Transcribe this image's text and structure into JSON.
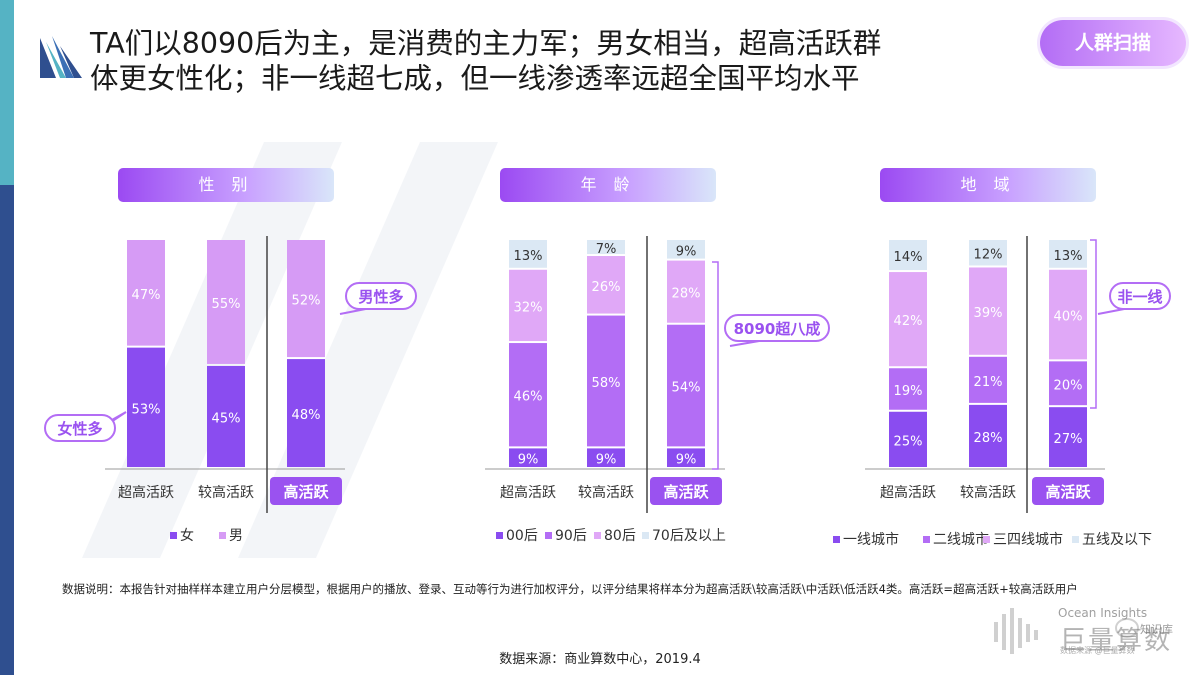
{
  "header": {
    "headline_line1": "TA们以8090后为主，是消费的主力军；男女相当，超高活跃群",
    "headline_line2": "体更女性化；非一线超七成，但一线渗透率远超全国平均水平",
    "badge": "人群扫描"
  },
  "footer": {
    "note": "数据说明：本报告针对抽样样本建立用户分层模型，根据用户的播放、登录、互动等行为进行加权评分，以评分结果将样本分为超高活跃\\较高活跃\\中活跃\\低活跃4类。高活跃=超高活跃+较高活跃用户",
    "source": "数据来源：商业算数中心，2019.4",
    "brand_line1": "Ocean Insights",
    "brand_line2": "巨量算数",
    "brand_line3": "数据来源 @巨量算数",
    "wechat_label": "知识库"
  },
  "chart_data": [
    {
      "type": "bar",
      "stacked": true,
      "title": "性 别",
      "categories": [
        "超高活跃",
        "较高活跃",
        "高活跃"
      ],
      "series": [
        {
          "name": "女",
          "values": [
            53,
            45,
            48
          ],
          "color": "#8a4cf0"
        },
        {
          "name": "男",
          "values": [
            47,
            55,
            52
          ],
          "color": "#d69bf5"
        }
      ],
      "ylim": [
        0,
        100
      ],
      "legend": "bottom",
      "callouts": [
        {
          "text": "女性多",
          "category": "超高活跃"
        },
        {
          "text": "男性多",
          "category": "高活跃"
        }
      ]
    },
    {
      "type": "bar",
      "stacked": true,
      "title": "年 龄",
      "categories": [
        "超高活跃",
        "较高活跃",
        "高活跃"
      ],
      "series": [
        {
          "name": "00后",
          "values": [
            9,
            9,
            9
          ],
          "color": "#8a4cf0"
        },
        {
          "name": "90后",
          "values": [
            46,
            58,
            54
          ],
          "color": "#b36df5"
        },
        {
          "name": "80后",
          "values": [
            32,
            26,
            28
          ],
          "color": "#e0a8f7"
        },
        {
          "name": "70后及以上",
          "values": [
            13,
            7,
            9
          ],
          "color": "#dbe8f4"
        }
      ],
      "ylim": [
        0,
        100
      ],
      "legend": "bottom",
      "callouts": [
        {
          "text": "8090超八成",
          "category": "高活跃"
        }
      ]
    },
    {
      "type": "bar",
      "stacked": true,
      "title": "地 域",
      "categories": [
        "超高活跃",
        "较高活跃",
        "高活跃"
      ],
      "series": [
        {
          "name": "一线城市",
          "values": [
            25,
            28,
            27
          ],
          "color": "#8a4cf0"
        },
        {
          "name": "二线城市",
          "values": [
            19,
            21,
            20
          ],
          "color": "#b36df5"
        },
        {
          "name": "三四线城市",
          "values": [
            42,
            39,
            40
          ],
          "color": "#e0a8f7"
        },
        {
          "name": "五线及以下",
          "values": [
            14,
            12,
            13
          ],
          "color": "#dbe8f4"
        }
      ],
      "ylim": [
        0,
        100
      ],
      "legend": "bottom",
      "callouts": [
        {
          "text": "非一线",
          "category": "高活跃"
        }
      ]
    }
  ]
}
